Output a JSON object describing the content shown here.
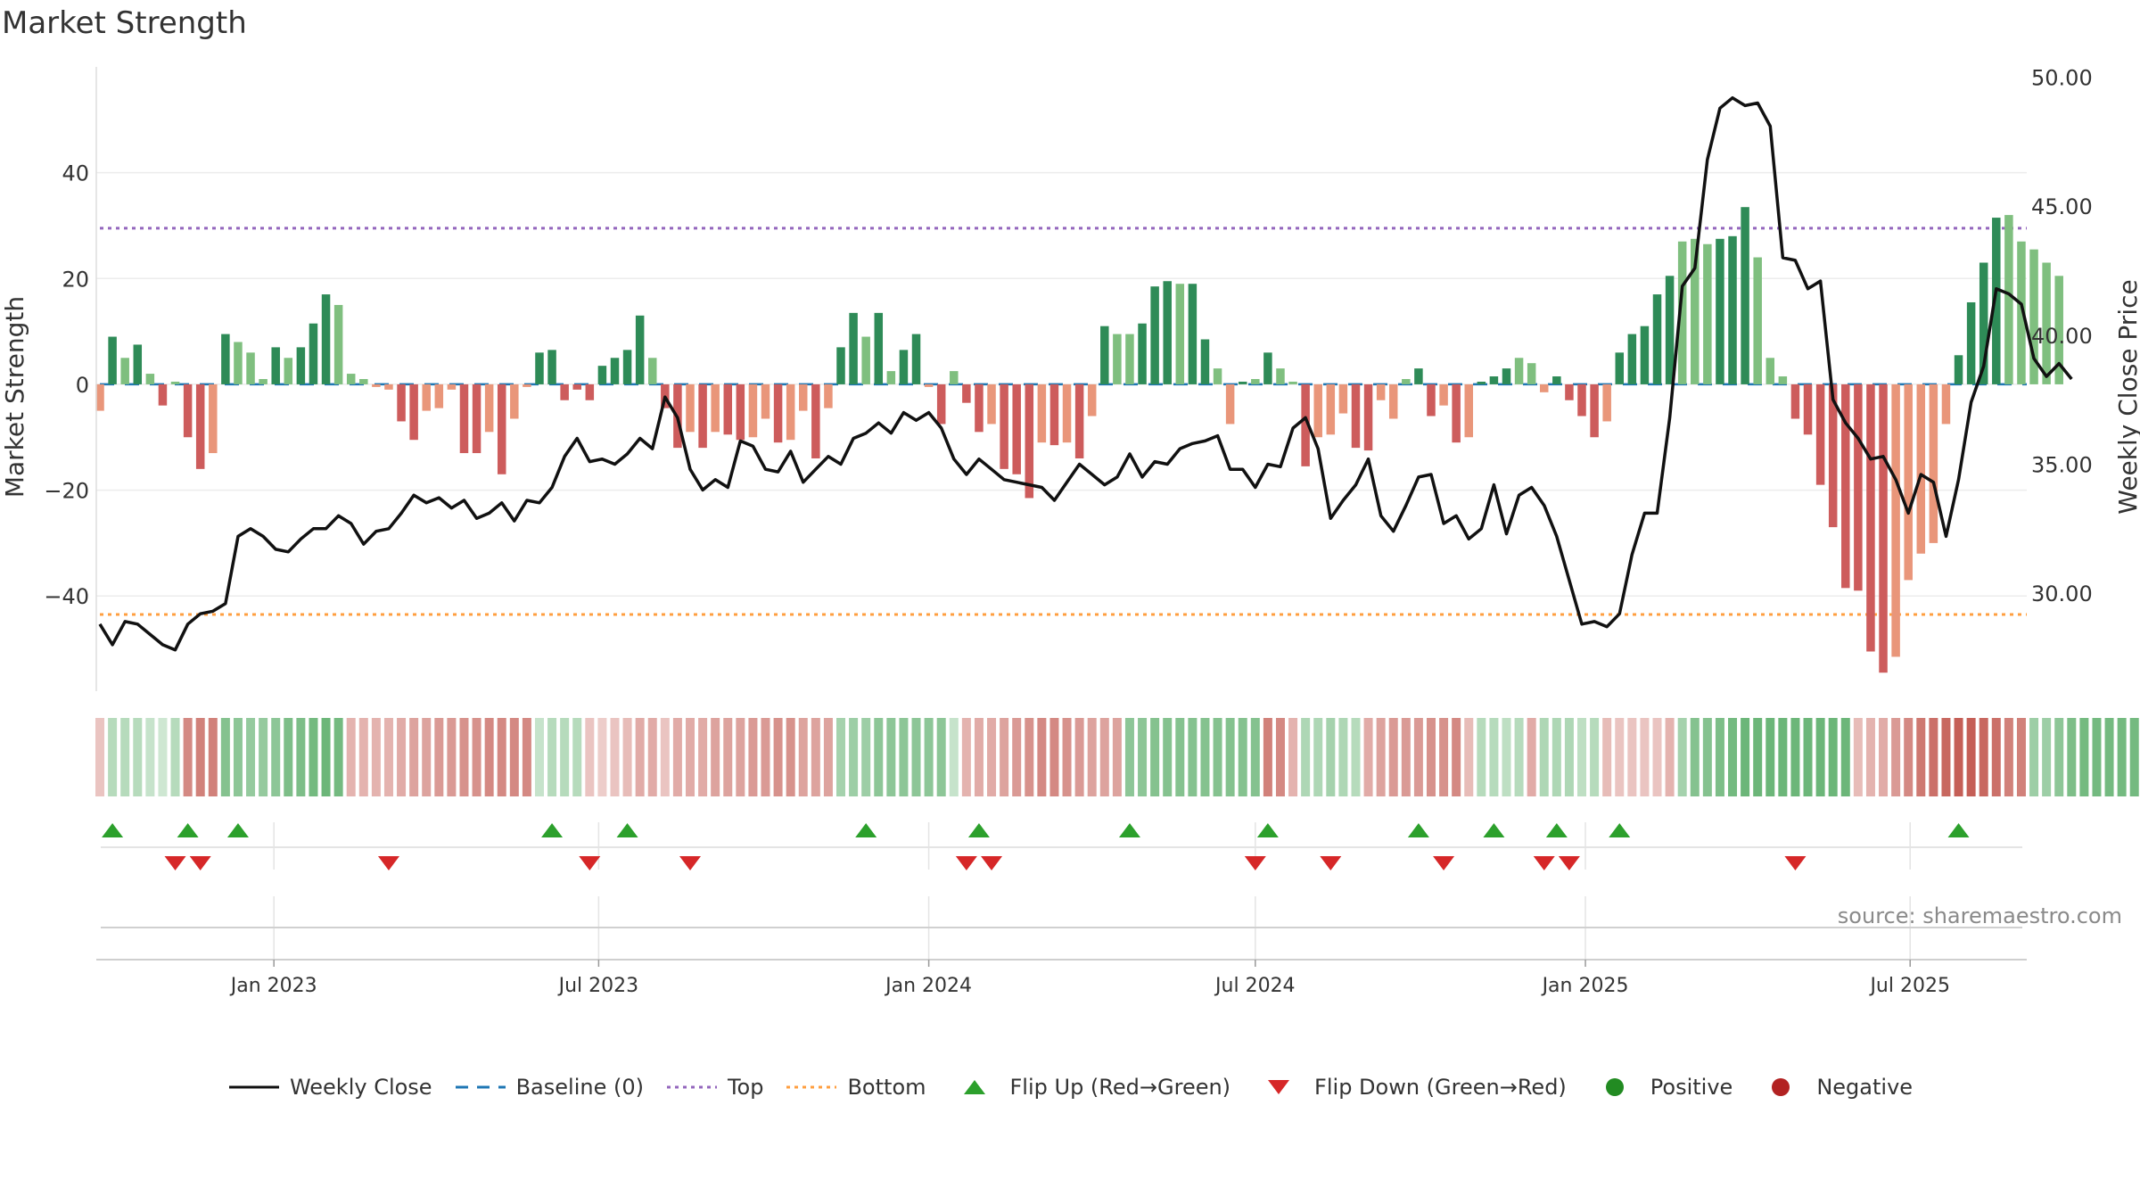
{
  "title": "Market Strength",
  "source": "source: sharemaestro.com",
  "colors": {
    "close": "#111111",
    "baseline": "#1f77b4",
    "top": "#9467bd",
    "bottom": "#ff9f40",
    "flip_up": "#2ca02c",
    "flip_down": "#d62728",
    "pos_strong": "#2e8b57",
    "pos_weak": "#7fbf7f",
    "neg_strong": "#cd5c5c",
    "neg_weak": "#e9967a"
  },
  "legend": [
    {
      "key": "close",
      "label": "Weekly Close"
    },
    {
      "key": "baseline",
      "label": "Baseline (0)"
    },
    {
      "key": "top",
      "label": "Top"
    },
    {
      "key": "bottom",
      "label": "Bottom"
    },
    {
      "key": "flip_up",
      "label": "Flip Up (Red→Green)"
    },
    {
      "key": "flip_down",
      "label": "Flip Down (Green→Red)"
    },
    {
      "key": "positive",
      "label": "Positive"
    },
    {
      "key": "negative",
      "label": "Negative"
    }
  ],
  "chart_data": {
    "type": "bar+line",
    "title": "Market Strength",
    "ylabel": "Market Strength",
    "y2label": "Weekly Close Price",
    "ylim": [
      -58,
      60
    ],
    "y2lim": [
      26.2,
      50.4
    ],
    "yticks": [
      40,
      20,
      0,
      -20,
      -40
    ],
    "ytick_labels": [
      "40",
      "20",
      "0",
      "−20",
      "−40"
    ],
    "y2ticks": [
      50,
      45,
      40,
      35,
      30
    ],
    "y2tick_labels": [
      "50.00",
      "45.00",
      "40.00",
      "35.00",
      "30.00"
    ],
    "top_level": 29.5,
    "bottom_level": -43.5,
    "start_date": "2022-09-26",
    "xlim": [
      "2022-09-24",
      "2025-09-04"
    ],
    "xticks": [
      "2023-01-01",
      "2023-07-01",
      "2024-01-01",
      "2024-07-01",
      "2025-01-01",
      "2025-07-01"
    ],
    "xtick_labels": [
      "Jan 2023",
      "Jul 2023",
      "Jan 2024",
      "Jul 2024",
      "Jan 2025",
      "Jul 2025"
    ],
    "strength": [
      -5,
      9,
      5,
      7.5,
      2,
      -4,
      0.5,
      -10,
      -16,
      -13,
      9.5,
      8,
      6,
      1,
      7,
      5,
      7,
      11.5,
      17,
      15,
      2,
      1,
      -0.5,
      -1,
      -7,
      -10.5,
      -5,
      -4.5,
      -1,
      -13,
      -13,
      -9,
      -17,
      -6.5,
      -0.5,
      6,
      6.5,
      -3,
      -1,
      -3,
      3.5,
      5,
      6.5,
      13,
      5,
      -4.5,
      -12,
      -9,
      -12,
      -9,
      -9.5,
      -10.5,
      -10,
      -6.5,
      -11,
      -10.5,
      -5,
      -14,
      -4.5,
      7,
      13.5,
      9,
      13.5,
      2.5,
      6.5,
      9.5,
      -0.5,
      -7.5,
      2.5,
      -3.5,
      -9,
      -7.5,
      -16,
      -17,
      -21.5,
      -11,
      -11.5,
      -11,
      -14,
      -6,
      11,
      9.5,
      9.5,
      11.5,
      18.5,
      19.5,
      19,
      19,
      8.5,
      3,
      -7.5,
      0.5,
      1,
      6,
      3,
      0.5,
      -15.5,
      -10,
      -9.5,
      -5.5,
      -12,
      -12.5,
      -3,
      -6.5,
      1,
      3,
      -6,
      -4,
      -11,
      -10,
      0.5,
      1.5,
      3,
      5,
      4,
      -1.5,
      1.5,
      -3,
      -6,
      -10,
      -7,
      6,
      9.5,
      11,
      17,
      20.5,
      27,
      27.5,
      26.5,
      27.5,
      28,
      33.5,
      24,
      5,
      1.5,
      -6.5,
      -9.5,
      -19,
      -27,
      -38.5,
      -39,
      -50.5,
      -54.5,
      -51.5,
      -37,
      -32,
      -30,
      -7.5,
      5.5,
      15.5,
      23,
      31.5,
      32,
      27,
      25.5,
      23,
      20.5
    ],
    "strength_shade": [
      "w",
      "s",
      "w",
      "s",
      "w",
      "s",
      "w",
      "s",
      "s",
      "w",
      "s",
      "w",
      "w",
      "w",
      "s",
      "w",
      "s",
      "s",
      "s",
      "w",
      "w",
      "w",
      "w",
      "w",
      "s",
      "s",
      "w",
      "w",
      "w",
      "s",
      "s",
      "w",
      "s",
      "w",
      "w",
      "s",
      "s",
      "s",
      "s",
      "s",
      "s",
      "s",
      "s",
      "s",
      "w",
      "s",
      "s",
      "w",
      "s",
      "w",
      "s",
      "s",
      "w",
      "w",
      "s",
      "w",
      "w",
      "s",
      "w",
      "s",
      "s",
      "w",
      "s",
      "w",
      "s",
      "s",
      "w",
      "s",
      "w",
      "s",
      "s",
      "w",
      "s",
      "s",
      "s",
      "w",
      "s",
      "w",
      "s",
      "w",
      "s",
      "w",
      "w",
      "s",
      "s",
      "s",
      "w",
      "s",
      "s",
      "w",
      "w",
      "s",
      "w",
      "s",
      "w",
      "w",
      "s",
      "w",
      "w",
      "w",
      "s",
      "s",
      "w",
      "w",
      "w",
      "s",
      "s",
      "w",
      "s",
      "w",
      "s",
      "s",
      "s",
      "w",
      "w",
      "w",
      "s",
      "s",
      "s",
      "s",
      "w",
      "s",
      "s",
      "s",
      "s",
      "s",
      "w",
      "w",
      "w",
      "s",
      "s",
      "s",
      "w",
      "w",
      "w",
      "s",
      "s",
      "s",
      "s",
      "s",
      "s",
      "s",
      "s",
      "w",
      "w",
      "w",
      "w",
      "w",
      "s",
      "s",
      "s",
      "s",
      "w",
      "w",
      "w",
      "w"
    ],
    "close": [
      28.8,
      28.0,
      28.9,
      28.8,
      28.4,
      28.0,
      27.8,
      28.8,
      29.2,
      29.3,
      29.6,
      32.2,
      32.5,
      32.2,
      31.7,
      31.6,
      32.1,
      32.5,
      32.5,
      33.0,
      32.7,
      31.9,
      32.4,
      32.5,
      33.1,
      33.8,
      33.5,
      33.7,
      33.3,
      33.6,
      32.9,
      33.1,
      33.5,
      32.8,
      33.6,
      33.5,
      34.1,
      35.3,
      36.0,
      35.1,
      35.2,
      35.0,
      35.4,
      36.0,
      35.6,
      37.6,
      36.8,
      34.8,
      34.0,
      34.4,
      34.1,
      35.9,
      35.7,
      34.8,
      34.7,
      35.5,
      34.3,
      34.8,
      35.3,
      35.0,
      36.0,
      36.2,
      36.6,
      36.2,
      37.0,
      36.7,
      37.0,
      36.4,
      35.2,
      34.6,
      35.2,
      34.8,
      34.4,
      34.3,
      34.2,
      34.1,
      33.6,
      34.3,
      35.0,
      34.6,
      34.2,
      34.5,
      35.4,
      34.5,
      35.1,
      35.0,
      35.6,
      35.8,
      35.9,
      36.1,
      34.8,
      34.8,
      34.1,
      35.0,
      34.9,
      36.4,
      36.8,
      35.6,
      32.9,
      33.6,
      34.2,
      35.2,
      33.0,
      32.4,
      33.4,
      34.5,
      34.6,
      32.7,
      33.0,
      32.1,
      32.5,
      34.2,
      32.3,
      33.8,
      34.1,
      33.4,
      32.2,
      30.5,
      28.8,
      28.9,
      28.7,
      29.2,
      31.5,
      33.1,
      33.1,
      36.8,
      41.9,
      42.6,
      46.8,
      48.8,
      49.2,
      48.9,
      49.0,
      48.1,
      43.0,
      42.9,
      41.8,
      42.1,
      37.5,
      36.6,
      36.0,
      35.2,
      35.3,
      34.4,
      33.1,
      34.6,
      34.3,
      32.2,
      34.4,
      37.4,
      38.8,
      41.8,
      41.6,
      41.2,
      39.1,
      38.4,
      38.9,
      38.3
    ],
    "status_shade": [
      0.35,
      0.45,
      0.45,
      0.45,
      0.35,
      0.3,
      0.45,
      0.7,
      0.75,
      0.75,
      0.75,
      0.7,
      0.65,
      0.65,
      0.7,
      0.8,
      0.8,
      0.85,
      0.9,
      0.85,
      0.45,
      0.45,
      0.45,
      0.45,
      0.5,
      0.55,
      0.55,
      0.6,
      0.6,
      0.65,
      0.65,
      0.7,
      0.7,
      0.7,
      0.7,
      0.35,
      0.45,
      0.45,
      0.45,
      0.35,
      0.3,
      0.35,
      0.4,
      0.5,
      0.5,
      0.35,
      0.5,
      0.5,
      0.5,
      0.55,
      0.55,
      0.55,
      0.6,
      0.6,
      0.65,
      0.65,
      0.55,
      0.55,
      0.55,
      0.55,
      0.6,
      0.6,
      0.7,
      0.7,
      0.7,
      0.7,
      0.7,
      0.7,
      0.35,
      0.45,
      0.5,
      0.5,
      0.55,
      0.6,
      0.65,
      0.7,
      0.7,
      0.65,
      0.6,
      0.55,
      0.55,
      0.55,
      0.7,
      0.7,
      0.75,
      0.75,
      0.75,
      0.75,
      0.75,
      0.75,
      0.75,
      0.75,
      0.75,
      0.75,
      0.7,
      0.45,
      0.5,
      0.5,
      0.55,
      0.5,
      0.45,
      0.5,
      0.55,
      0.6,
      0.6,
      0.6,
      0.65,
      0.65,
      0.7,
      0.4,
      0.45,
      0.45,
      0.4,
      0.45,
      0.5,
      0.5,
      0.5,
      0.5,
      0.4,
      0.45,
      0.4,
      0.35,
      0.35,
      0.35,
      0.35,
      0.45,
      0.55,
      0.75,
      0.75,
      0.8,
      0.85,
      0.9,
      0.9,
      0.9,
      0.9,
      0.9,
      0.9,
      0.9,
      0.9,
      0.9,
      0.4,
      0.45,
      0.5,
      0.6,
      0.7,
      0.8,
      0.85,
      0.9,
      0.95,
      0.95,
      0.9,
      0.85,
      0.75,
      0.75,
      0.6,
      0.6,
      0.7,
      0.8,
      0.85,
      0.85,
      0.85,
      0.85,
      0.85,
      0.85
    ],
    "status_sign": [
      -1,
      1,
      1,
      1,
      1,
      1,
      1,
      -1,
      -1,
      -1,
      1,
      1,
      1,
      1,
      1,
      1,
      1,
      1,
      1,
      1,
      -1,
      -1,
      -1,
      -1,
      -1,
      -1,
      -1,
      -1,
      -1,
      -1,
      -1,
      -1,
      -1,
      -1,
      -1,
      1,
      1,
      1,
      1,
      -1,
      -1,
      -1,
      -1,
      -1,
      -1,
      -1,
      -1,
      -1,
      -1,
      -1,
      -1,
      -1,
      -1,
      -1,
      -1,
      -1,
      -1,
      -1,
      -1,
      1,
      1,
      1,
      1,
      1,
      1,
      1,
      1,
      1,
      1,
      -1,
      -1,
      -1,
      -1,
      -1,
      -1,
      -1,
      -1,
      -1,
      -1,
      -1,
      -1,
      -1,
      1,
      1,
      1,
      1,
      1,
      1,
      1,
      1,
      1,
      1,
      1,
      -1,
      -1,
      -1,
      1,
      1,
      1,
      1,
      1,
      -1,
      -1,
      -1,
      -1,
      -1,
      -1,
      -1,
      -1,
      -1,
      1,
      1,
      1,
      1,
      -1,
      1,
      1,
      1,
      1,
      1,
      -1,
      -1,
      -1,
      -1,
      -1,
      -1,
      1,
      1,
      1,
      1,
      1,
      1,
      1,
      1,
      1,
      1,
      1,
      1,
      1,
      1,
      -1,
      -1,
      -1,
      -1,
      -1,
      -1,
      -1,
      -1,
      -1,
      -1,
      -1,
      -1,
      -1,
      -1,
      1,
      1,
      1,
      1,
      1,
      1,
      1,
      1,
      1,
      1,
      1,
      1
    ],
    "flip_up_weeks": [
      1,
      7,
      11,
      36,
      42,
      61,
      70,
      82,
      93,
      105,
      111,
      116,
      121,
      148
    ],
    "flip_down_weeks": [
      6,
      8,
      23,
      39,
      47,
      69,
      71,
      92,
      98,
      107,
      115,
      117,
      135
    ]
  }
}
